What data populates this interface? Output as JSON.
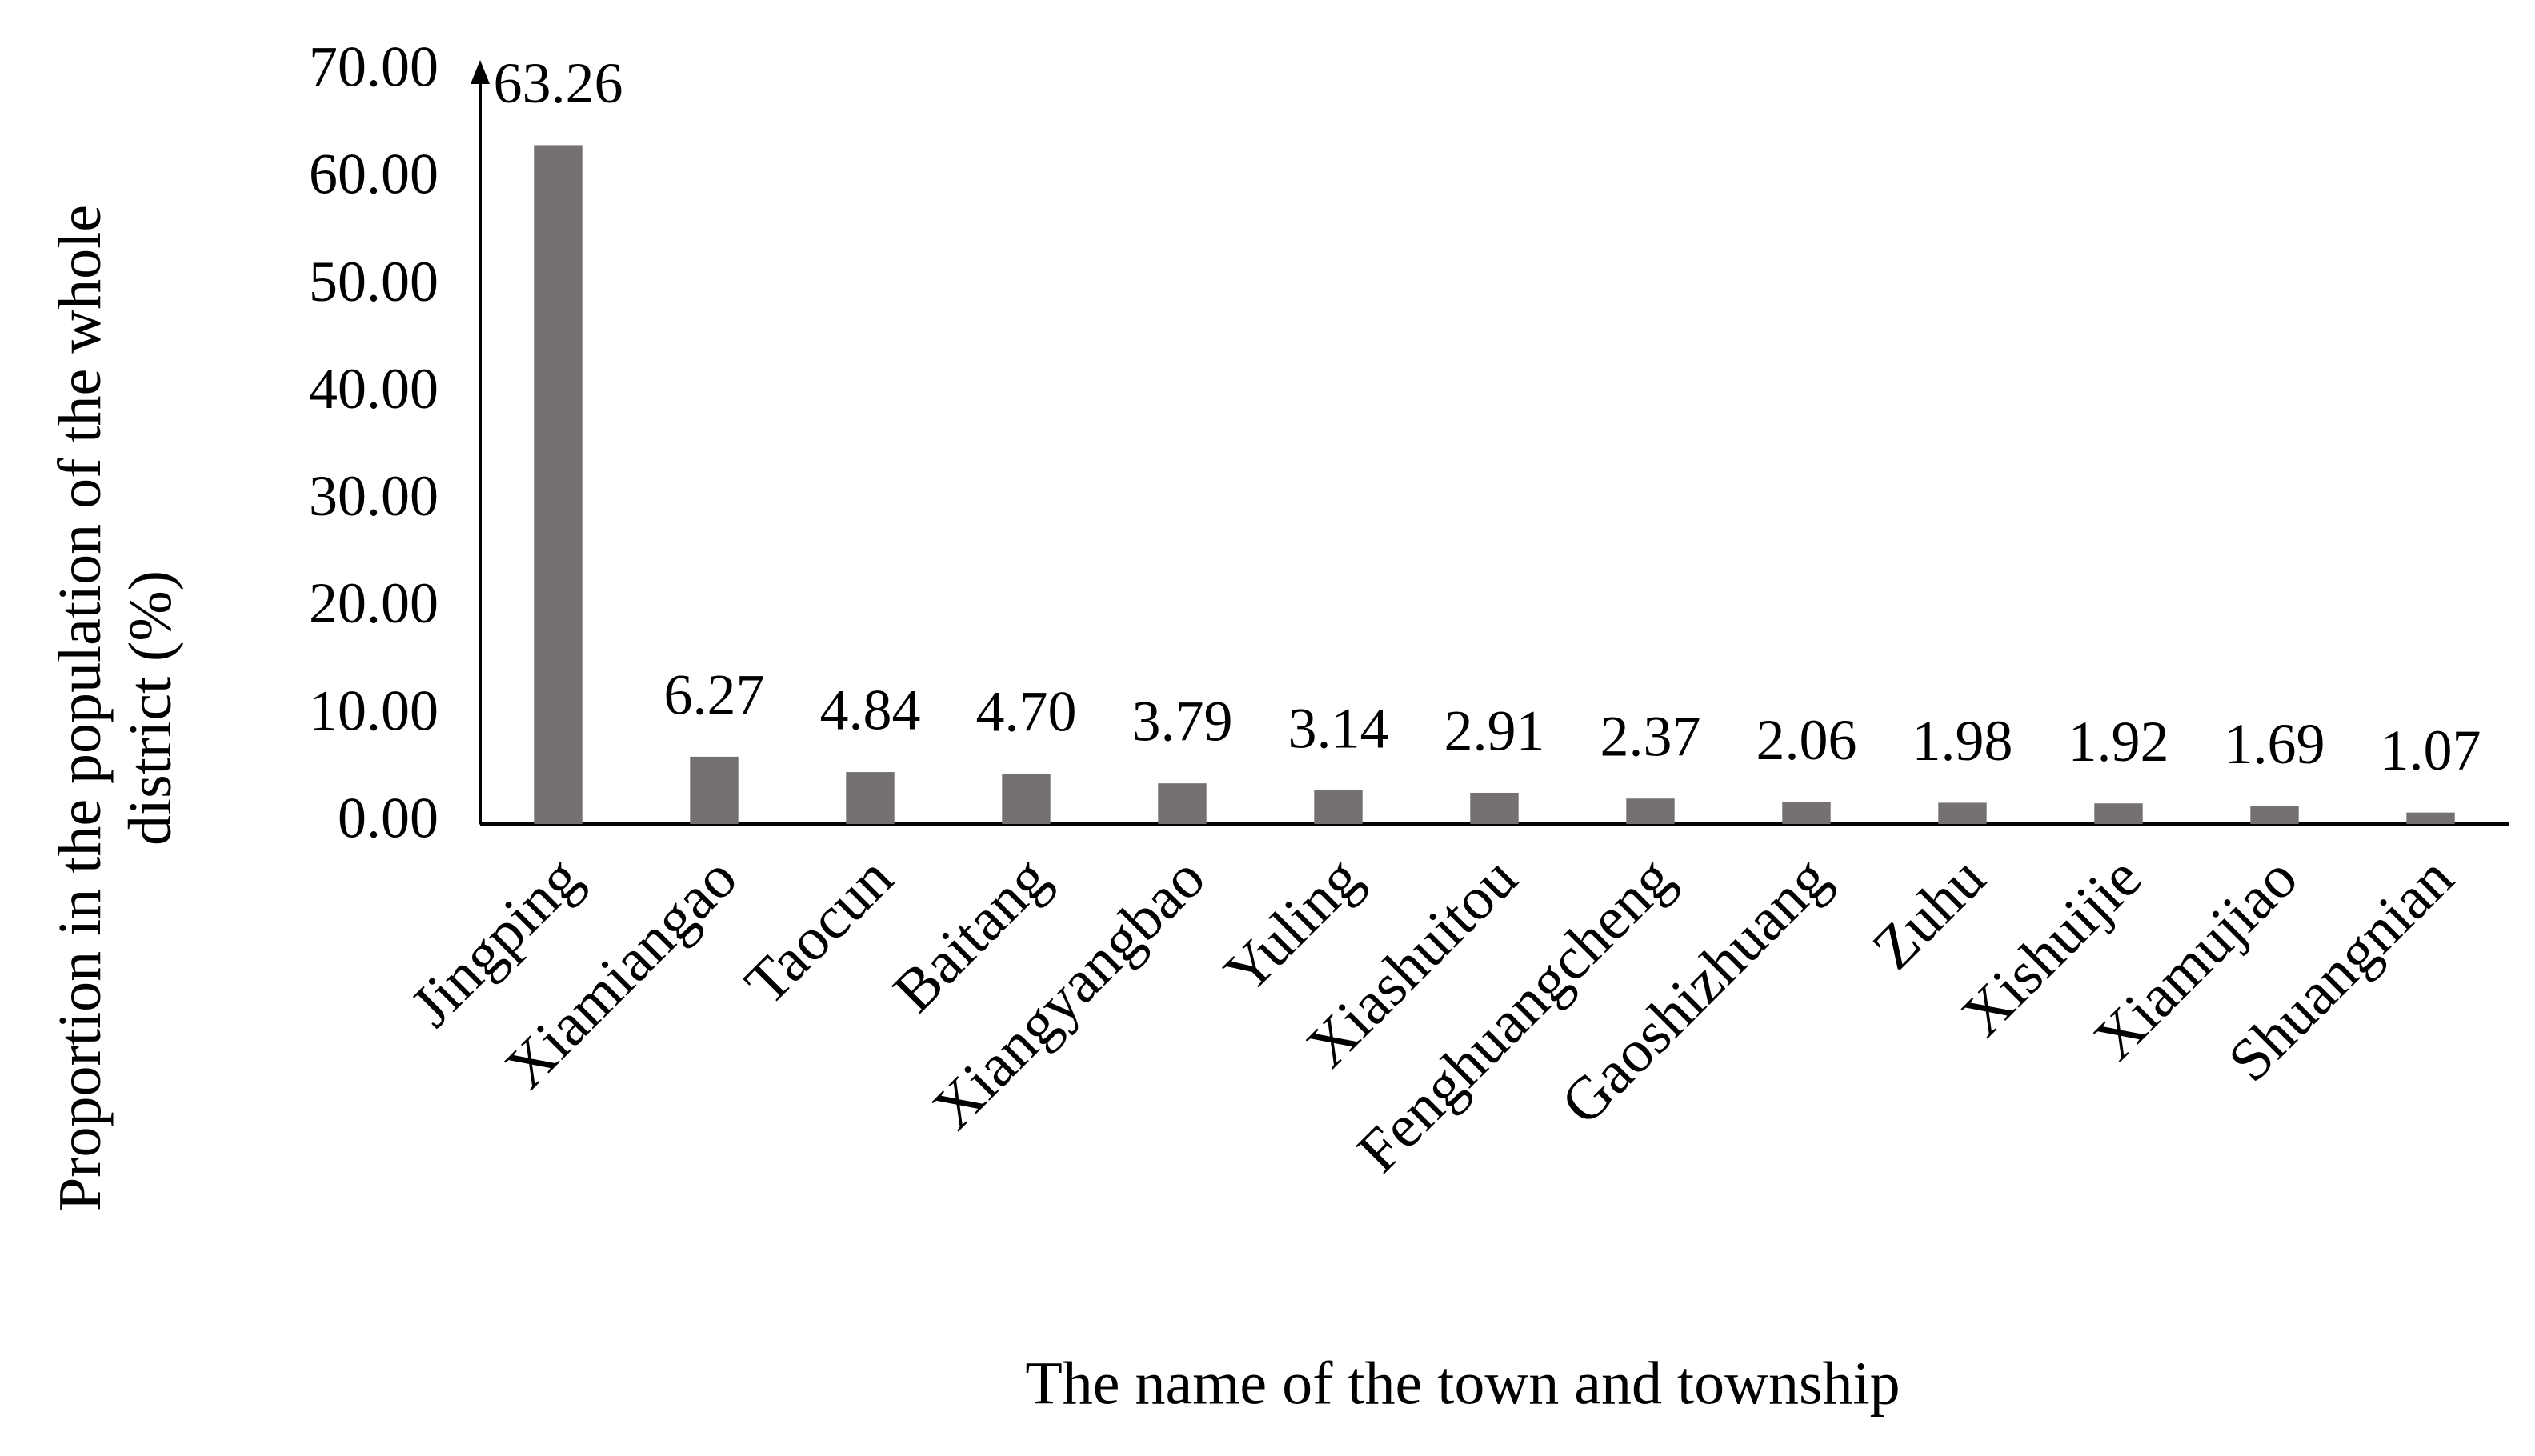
{
  "chart_data": {
    "type": "bar",
    "xlabel": "The name of the town and township",
    "ylabel": "Proportion in the population of the whole district (%)",
    "categories": [
      "Jingping",
      "Xiamiangao",
      "Taocun",
      "Baitang",
      "Xiangyangbao",
      "Yuling",
      "Xiashuitou",
      "Fenghuangcheng",
      "Gaoshizhuang",
      "Zuhu",
      "Xishuijie",
      "Xiamujiao",
      "Shuangnian"
    ],
    "values": [
      63.26,
      6.27,
      4.84,
      4.7,
      3.79,
      3.14,
      2.91,
      2.37,
      2.06,
      1.98,
      1.92,
      1.69,
      1.07
    ],
    "value_labels": [
      "63.26",
      "6.27",
      "4.84",
      "4.70",
      "3.79",
      "3.14",
      "2.91",
      "2.37",
      "2.06",
      "1.98",
      "1.92",
      "1.69",
      "1.07"
    ],
    "color": "#767171",
    "ylim": [
      0,
      70
    ],
    "yticks": [
      {
        "value": 0,
        "label": "0.00"
      },
      {
        "value": 10,
        "label": "10.00"
      },
      {
        "value": 20,
        "label": "20.00"
      },
      {
        "value": 30,
        "label": "30.00"
      },
      {
        "value": 40,
        "label": "40.00"
      },
      {
        "value": 50,
        "label": "50.00"
      },
      {
        "value": 60,
        "label": "60.00"
      },
      {
        "value": 70,
        "label": "70.00"
      }
    ],
    "grid": false
  }
}
